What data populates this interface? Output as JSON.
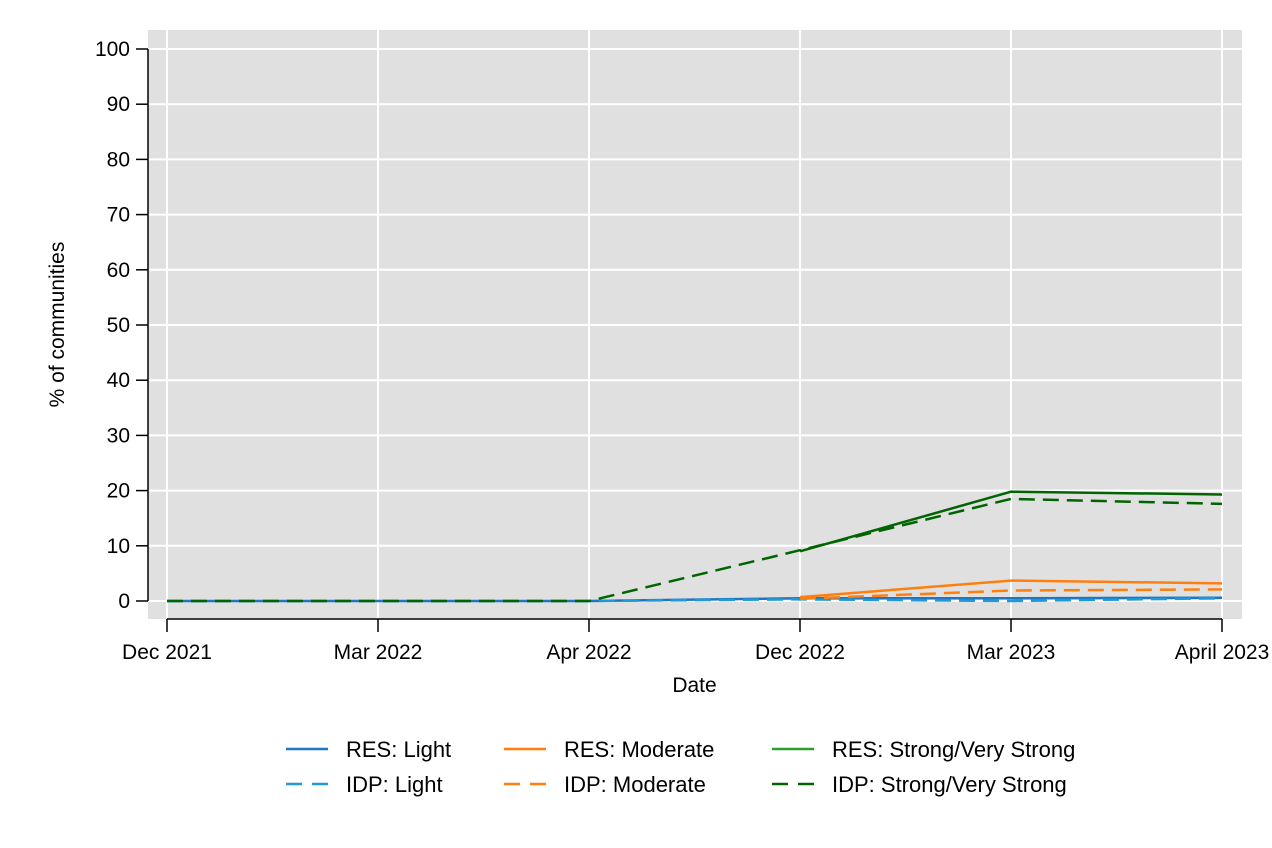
{
  "chart_data": {
    "type": "line",
    "title": "",
    "xlabel": "Date",
    "ylabel": "% of communities",
    "categories": [
      "Dec 2021",
      "Mar 2022",
      "Apr 2022",
      "Dec 2022",
      "Mar 2023",
      "April 2023"
    ],
    "ylim": [
      0,
      100
    ],
    "yticks": [
      0,
      10,
      20,
      30,
      40,
      50,
      60,
      70,
      80,
      90,
      100
    ],
    "grid": true,
    "legend_position": "bottom",
    "series": [
      {
        "name": "RES: Light",
        "color": "#1f77c4",
        "dash": "solid",
        "values": [
          0,
          0,
          0,
          0.5,
          0.5,
          0.6
        ]
      },
      {
        "name": "IDP: Light",
        "color": "#1f9ad6",
        "dash": "dashed",
        "values": [
          0,
          0,
          0,
          0.3,
          0.0,
          0.5
        ]
      },
      {
        "name": "RES: Moderate",
        "color": "#ff7f0e",
        "dash": "solid",
        "values": [
          null,
          null,
          null,
          0.7,
          3.7,
          3.2
        ]
      },
      {
        "name": "IDP: Moderate",
        "color": "#ff7f0e",
        "dash": "dashed",
        "values": [
          null,
          null,
          null,
          0.4,
          1.9,
          2.1
        ]
      },
      {
        "name": "RES: Strong/Very Strong",
        "color": "#006400",
        "dash": "solid",
        "values": [
          null,
          null,
          null,
          9.0,
          19.8,
          19.3
        ]
      },
      {
        "name": "IDP: Strong/Very Strong",
        "color": "#006400",
        "dash": "dashed",
        "values": [
          0,
          0,
          0,
          9.2,
          18.5,
          17.6
        ]
      }
    ],
    "legend": [
      {
        "label": "RES: Light",
        "color": "#1f77c4",
        "dash": "solid"
      },
      {
        "label": "RES: Moderate",
        "color": "#ff7f0e",
        "dash": "solid"
      },
      {
        "label": "RES: Strong/Very Strong",
        "color": "#2ca02c",
        "dash": "solid"
      },
      {
        "label": "IDP: Light",
        "color": "#1f9ad6",
        "dash": "dashed"
      },
      {
        "label": "IDP: Moderate",
        "color": "#ff7f0e",
        "dash": "dashed"
      },
      {
        "label": "IDP: Strong/Very Strong",
        "color": "#006400",
        "dash": "dashed"
      }
    ],
    "plot_background": "#e0e0e0",
    "gridline_color": "#ffffff"
  }
}
